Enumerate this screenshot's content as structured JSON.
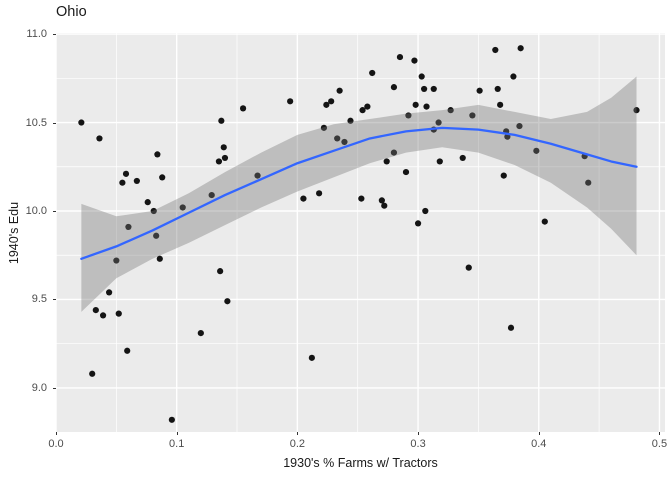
{
  "chart_data": {
    "type": "scatter",
    "title": "Ohio",
    "xlabel": "1930's % Farms w/ Tractors",
    "ylabel": "1940's Edu",
    "xlim": [
      0,
      0.5046
    ],
    "ylim": [
      8.751,
      11.006
    ],
    "x_ticks": [
      0.0,
      0.1,
      0.2,
      0.3,
      0.4,
      0.5
    ],
    "x_tick_labels": [
      "0.0",
      "0.1",
      "0.2",
      "0.3",
      "0.4",
      "0.5"
    ],
    "x_minor_ticks": [
      0.05,
      0.15,
      0.25,
      0.35,
      0.45
    ],
    "y_ticks": [
      9.0,
      9.5,
      10.0,
      10.5,
      11.0
    ],
    "y_tick_labels": [
      "9.0",
      "9.5",
      "10.0",
      "10.5",
      "11.0"
    ],
    "y_minor_ticks": [
      9.25,
      9.75,
      10.25,
      10.75
    ],
    "grid": true,
    "legend": "none",
    "colors": {
      "panel_background": "#ebebeb",
      "grid_major": "#ffffff",
      "grid_minor": "#ffffff",
      "point": "#141414",
      "smooth_line": "#3366ff",
      "ribbon_fill": "rgba(119,119,119,0.38)",
      "tick_text": "#4d4d4d",
      "title_text": "#1a1a1a"
    },
    "points": [
      [
        0.021,
        10.5
      ],
      [
        0.036,
        10.41
      ],
      [
        0.03,
        9.08
      ],
      [
        0.033,
        9.44
      ],
      [
        0.039,
        9.41
      ],
      [
        0.052,
        9.42
      ],
      [
        0.044,
        9.54
      ],
      [
        0.05,
        9.72
      ],
      [
        0.059,
        9.21
      ],
      [
        0.06,
        9.91
      ],
      [
        0.055,
        10.16
      ],
      [
        0.058,
        10.21
      ],
      [
        0.067,
        10.17
      ],
      [
        0.076,
        10.05
      ],
      [
        0.081,
        10.0
      ],
      [
        0.083,
        9.86
      ],
      [
        0.086,
        9.73
      ],
      [
        0.084,
        10.32
      ],
      [
        0.088,
        10.19
      ],
      [
        0.096,
        8.82
      ],
      [
        0.105,
        10.02
      ],
      [
        0.12,
        9.31
      ],
      [
        0.129,
        10.09
      ],
      [
        0.135,
        10.28
      ],
      [
        0.136,
        9.66
      ],
      [
        0.137,
        10.51
      ],
      [
        0.139,
        10.36
      ],
      [
        0.14,
        10.3
      ],
      [
        0.142,
        9.49
      ],
      [
        0.155,
        10.58
      ],
      [
        0.167,
        10.2
      ],
      [
        0.194,
        10.62
      ],
      [
        0.205,
        10.07
      ],
      [
        0.212,
        9.17
      ],
      [
        0.218,
        10.1
      ],
      [
        0.222,
        10.47
      ],
      [
        0.224,
        10.6
      ],
      [
        0.228,
        10.62
      ],
      [
        0.233,
        10.41
      ],
      [
        0.235,
        10.68
      ],
      [
        0.239,
        10.39
      ],
      [
        0.244,
        10.51
      ],
      [
        0.253,
        10.07
      ],
      [
        0.254,
        10.57
      ],
      [
        0.258,
        10.59
      ],
      [
        0.262,
        10.78
      ],
      [
        0.27,
        10.06
      ],
      [
        0.272,
        10.03
      ],
      [
        0.274,
        10.28
      ],
      [
        0.28,
        10.33
      ],
      [
        0.28,
        10.7
      ],
      [
        0.285,
        10.87
      ],
      [
        0.29,
        10.22
      ],
      [
        0.292,
        10.54
      ],
      [
        0.297,
        10.85
      ],
      [
        0.298,
        10.6
      ],
      [
        0.3,
        9.93
      ],
      [
        0.303,
        10.76
      ],
      [
        0.305,
        10.69
      ],
      [
        0.306,
        10.0
      ],
      [
        0.307,
        10.59
      ],
      [
        0.313,
        10.69
      ],
      [
        0.313,
        10.46
      ],
      [
        0.317,
        10.5
      ],
      [
        0.318,
        10.28
      ],
      [
        0.327,
        10.57
      ],
      [
        0.337,
        10.3
      ],
      [
        0.342,
        9.68
      ],
      [
        0.345,
        10.54
      ],
      [
        0.351,
        10.68
      ],
      [
        0.364,
        10.91
      ],
      [
        0.366,
        10.69
      ],
      [
        0.368,
        10.6
      ],
      [
        0.371,
        10.2
      ],
      [
        0.373,
        10.45
      ],
      [
        0.374,
        10.42
      ],
      [
        0.377,
        9.34
      ],
      [
        0.379,
        10.76
      ],
      [
        0.384,
        10.48
      ],
      [
        0.385,
        10.92
      ],
      [
        0.398,
        10.34
      ],
      [
        0.405,
        9.94
      ],
      [
        0.438,
        10.31
      ],
      [
        0.441,
        10.16
      ],
      [
        0.481,
        10.57
      ]
    ],
    "smooth_line": [
      [
        0.021,
        9.73
      ],
      [
        0.05,
        9.8
      ],
      [
        0.08,
        9.89
      ],
      [
        0.11,
        9.99
      ],
      [
        0.14,
        10.09
      ],
      [
        0.17,
        10.18
      ],
      [
        0.2,
        10.27
      ],
      [
        0.23,
        10.34
      ],
      [
        0.26,
        10.41
      ],
      [
        0.29,
        10.45
      ],
      [
        0.32,
        10.47
      ],
      [
        0.35,
        10.46
      ],
      [
        0.38,
        10.43
      ],
      [
        0.41,
        10.38
      ],
      [
        0.44,
        10.32
      ],
      [
        0.46,
        10.28
      ],
      [
        0.481,
        10.25
      ]
    ],
    "ribbon_upper": [
      [
        0.021,
        10.04
      ],
      [
        0.05,
        9.97
      ],
      [
        0.08,
        10.0
      ],
      [
        0.11,
        10.1
      ],
      [
        0.14,
        10.22
      ],
      [
        0.17,
        10.33
      ],
      [
        0.2,
        10.43
      ],
      [
        0.23,
        10.49
      ],
      [
        0.26,
        10.52
      ],
      [
        0.29,
        10.55
      ],
      [
        0.32,
        10.57
      ],
      [
        0.35,
        10.6
      ],
      [
        0.38,
        10.56
      ],
      [
        0.41,
        10.52
      ],
      [
        0.44,
        10.56
      ],
      [
        0.46,
        10.64
      ],
      [
        0.481,
        10.76
      ]
    ],
    "ribbon_lower": [
      [
        0.021,
        9.43
      ],
      [
        0.05,
        9.62
      ],
      [
        0.08,
        9.73
      ],
      [
        0.11,
        9.82
      ],
      [
        0.14,
        9.92
      ],
      [
        0.17,
        10.02
      ],
      [
        0.2,
        10.11
      ],
      [
        0.23,
        10.19
      ],
      [
        0.26,
        10.27
      ],
      [
        0.29,
        10.33
      ],
      [
        0.32,
        10.36
      ],
      [
        0.35,
        10.33
      ],
      [
        0.38,
        10.26
      ],
      [
        0.41,
        10.16
      ],
      [
        0.44,
        10.02
      ],
      [
        0.46,
        9.9
      ],
      [
        0.481,
        9.75
      ]
    ]
  }
}
